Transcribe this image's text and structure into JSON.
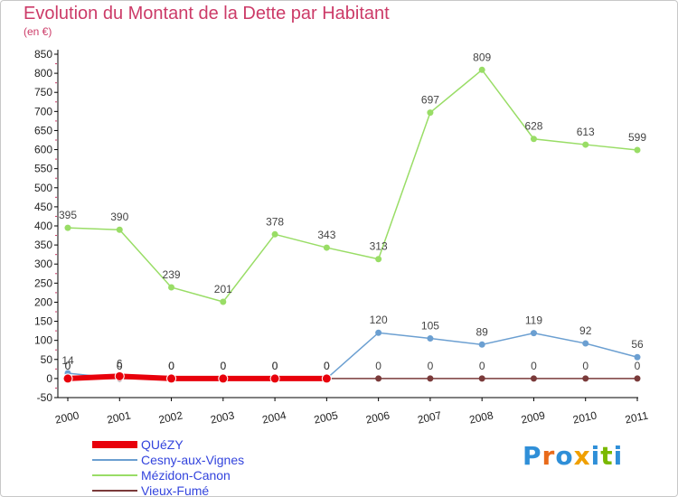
{
  "chart_data": {
    "type": "line",
    "title": "Evolution du Montant de la Dette par Habitant",
    "subtitle": "(en €)",
    "x": [
      "2000",
      "2001",
      "2002",
      "2003",
      "2004",
      "2005",
      "2006",
      "2007",
      "2008",
      "2009",
      "2010",
      "2011"
    ],
    "ylim": [
      -50,
      850
    ],
    "yticks": [
      -50,
      0,
      50,
      100,
      150,
      200,
      250,
      300,
      350,
      400,
      450,
      500,
      550,
      600,
      650,
      700,
      750,
      800,
      850
    ],
    "grid": false,
    "legend_position": "bottom-left",
    "series": [
      {
        "name": "QUéZY",
        "color": "#e8000b",
        "values": [
          0,
          6,
          0,
          0,
          0,
          0,
          null,
          null,
          null,
          null,
          null,
          null
        ],
        "labels": [
          "0",
          "6",
          "0",
          "0",
          "0",
          "0",
          "",
          "",
          "",
          "",
          "",
          ""
        ]
      },
      {
        "name": "Cesny-aux-Vignes",
        "color": "#6b9fd1",
        "values": [
          14,
          0,
          0,
          0,
          0,
          0,
          120,
          105,
          89,
          119,
          92,
          56
        ],
        "labels": [
          "14",
          "0",
          "0",
          "0",
          "0",
          "0",
          "120",
          "105",
          "89",
          "119",
          "92",
          "56"
        ]
      },
      {
        "name": "Mézidon-Canon",
        "color": "#99dd66",
        "values": [
          395,
          390,
          239,
          201,
          378,
          343,
          313,
          697,
          809,
          628,
          613,
          599
        ],
        "labels": [
          "395",
          "390",
          "239",
          "201",
          "378",
          "343",
          "313",
          "697",
          "809",
          "628",
          "613",
          "599"
        ]
      },
      {
        "name": "Vieux-Fumé",
        "color": "#7a3a3a",
        "values": [
          0,
          0,
          0,
          0,
          0,
          0,
          0,
          0,
          0,
          0,
          0,
          0
        ],
        "labels": [
          "0",
          "0",
          "0",
          "0",
          "0",
          "0",
          "0",
          "0",
          "0",
          "0",
          "0",
          "0"
        ]
      }
    ]
  },
  "logo": {
    "text": "Proxiti"
  }
}
